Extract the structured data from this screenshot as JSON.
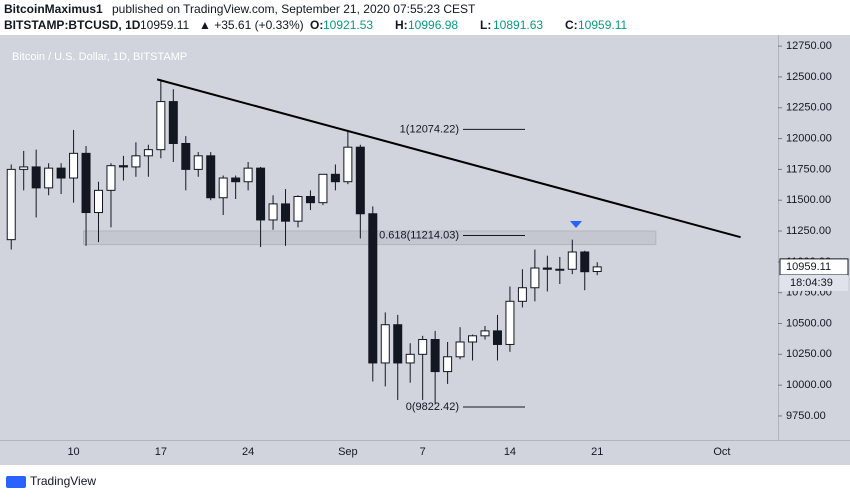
{
  "header": {
    "author": "BitcoinMaximus1",
    "published": "published on TradingView.com, September 21, 2020 07:55:23 CEST",
    "symbol": "BITSTAMP:BTCUSD, 1D",
    "change": "▲ +35.61 (+0.33%)",
    "keys": [
      "O:",
      "H:",
      "L:",
      "C:"
    ]
  },
  "chart_data": {
    "type": "candlestick",
    "title": "Bitcoin / U.S. Dollar, 1D, BITSTAMP",
    "categories": [
      null,
      null,
      null,
      null,
      null,
      "10",
      null,
      null,
      null,
      null,
      null,
      null,
      "17",
      null,
      null,
      null,
      null,
      null,
      null,
      "24",
      null,
      null,
      null,
      null,
      null,
      null,
      null,
      "Sep",
      null,
      null,
      null,
      null,
      null,
      "7",
      null,
      null,
      null,
      null,
      null,
      null,
      "14",
      null,
      null,
      null,
      null,
      null,
      null,
      "21",
      null,
      null,
      null,
      null,
      null,
      null,
      null,
      null,
      null,
      "Oct",
      null,
      null,
      null,
      null
    ],
    "open": [
      11180,
      11750,
      11770,
      11600,
      11760,
      11680,
      11880,
      11400,
      11580,
      11780,
      11770,
      11860,
      11910,
      12300,
      11960,
      11750,
      11860,
      11520,
      11680,
      11650,
      11760,
      11340,
      11470,
      11330,
      11530,
      11480,
      11710,
      11650,
      11930,
      11390,
      10180,
      10490,
      10180,
      10250,
      10370,
      10110,
      10230,
      10350,
      10400,
      10440,
      10330,
      10680,
      10790,
      10950,
      10940,
      10940,
      11080,
      10921.53,
      null,
      null,
      null,
      null,
      null,
      null,
      null,
      null,
      null,
      null,
      null,
      null,
      null,
      null
    ],
    "high": [
      11790,
      11900,
      11910,
      11800,
      11800,
      12070,
      11940,
      11650,
      11800,
      11860,
      11970,
      11950,
      12480,
      12400,
      12020,
      11890,
      11890,
      11700,
      11700,
      11810,
      11770,
      11540,
      11590,
      11540,
      11580,
      11710,
      11790,
      12070,
      11950,
      11450,
      10590,
      10570,
      10340,
      10400,
      10440,
      10350,
      10470,
      10410,
      10480,
      10570,
      10800,
      10940,
      11100,
      11050,
      11040,
      11180,
      11090,
      10996.98,
      null,
      null,
      null,
      null,
      null,
      null,
      null,
      null,
      null,
      null,
      null,
      null,
      null,
      null
    ],
    "low": [
      11100,
      11580,
      11360,
      11540,
      11550,
      11480,
      11130,
      11160,
      11280,
      11660,
      11690,
      11690,
      11840,
      11810,
      11580,
      11690,
      11500,
      11380,
      11510,
      11580,
      11120,
      11260,
      11130,
      11280,
      11420,
      11460,
      11580,
      11630,
      11190,
      10030,
      9990,
      9880,
      10020,
      9880,
      9850,
      10010,
      10210,
      10200,
      10370,
      10200,
      10270,
      10630,
      10680,
      10760,
      10820,
      10900,
      10770,
      10891.63,
      null,
      null,
      null,
      null,
      null,
      null,
      null,
      null,
      null,
      null,
      null,
      null,
      null,
      null
    ],
    "close": [
      11750,
      11770,
      11600,
      11760,
      11680,
      11880,
      11400,
      11580,
      11780,
      11770,
      11860,
      11910,
      12300,
      11960,
      11750,
      11860,
      11520,
      11680,
      11650,
      11760,
      11340,
      11470,
      11330,
      11530,
      11480,
      11710,
      11650,
      11930,
      11390,
      10180,
      10490,
      10180,
      10250,
      10370,
      10110,
      10230,
      10350,
      10400,
      10440,
      10330,
      10680,
      10790,
      10950,
      10940,
      10940,
      11080,
      10920,
      10959.11,
      null,
      null,
      null,
      null,
      null,
      null,
      null,
      null,
      null,
      null,
      null,
      null,
      null,
      null
    ],
    "up_color": "#ffffff",
    "down_color": "#131722",
    "ylim": [
      9555,
      12840
    ],
    "yticks": [
      {
        "value": 9750,
        "label": "9750.00"
      },
      {
        "value": 10000,
        "label": "10000.00"
      },
      {
        "value": 10250,
        "label": "10250.00"
      },
      {
        "value": 10500,
        "label": "10500.00"
      },
      {
        "value": 10750,
        "label": "10750.00"
      },
      {
        "value": 11000,
        "label": "11000.00"
      },
      {
        "value": 11250,
        "label": "11250.00"
      },
      {
        "value": 11500,
        "label": "11500.00"
      },
      {
        "value": 11750,
        "label": "11750.00"
      },
      {
        "value": 12000,
        "label": "12000.00"
      },
      {
        "value": 12250,
        "label": "12250.00"
      },
      {
        "value": 12500,
        "label": "12500.00"
      },
      {
        "value": 12750,
        "label": "12750.00"
      }
    ],
    "trendline": [
      12480,
      11200
    ],
    "zone": [
      11140,
      11250
    ],
    "fib_levels": [
      {
        "value": 12074.22,
        "label": "1(12074.22)"
      },
      {
        "value": 11214.03,
        "label": "0.618(11214.03)"
      },
      {
        "value": 9822.42,
        "label": "0(9822.42)"
      }
    ],
    "countdown": "18:04:39"
  },
  "footer": {
    "brand": "TradingView"
  }
}
